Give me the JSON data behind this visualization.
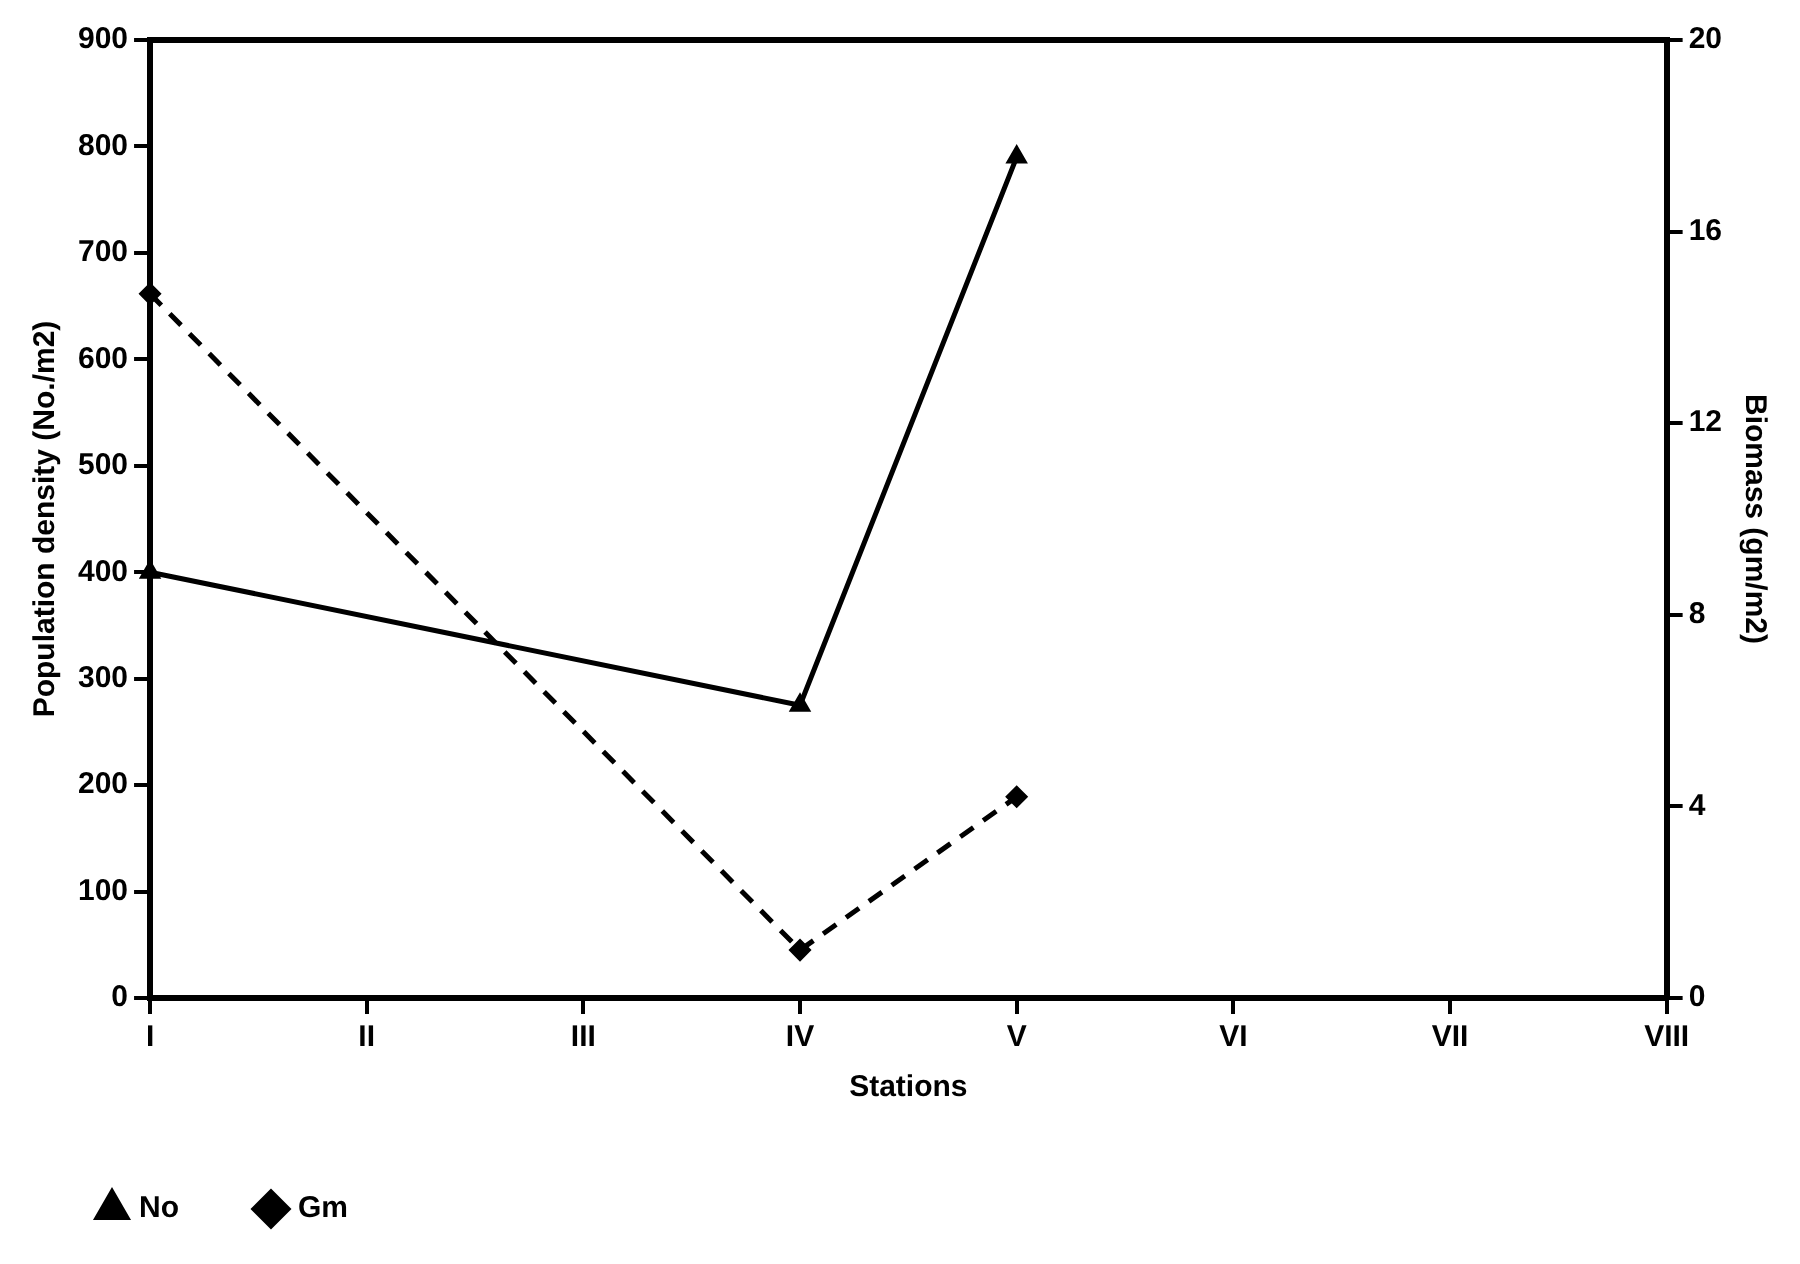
{
  "chart_data": {
    "type": "line",
    "xlabel": "Stations",
    "ylabel": "Population density (No./m2)",
    "y2label": "Biomass (gm/m2)",
    "categories": [
      "I",
      "II",
      "III",
      "IV",
      "V",
      "VI",
      "VII",
      "VIII"
    ],
    "series": [
      {
        "name": "No",
        "color": "#000000",
        "marker": "triangle",
        "line_style": "solid",
        "values": [
          400,
          null,
          null,
          275,
          790,
          null,
          null,
          null
        ]
      },
      {
        "name": "Gm",
        "color": "#000000",
        "marker": "diamond",
        "line_style": "dashed",
        "axis": "y2",
        "values": [
          14.7,
          null,
          null,
          1.0,
          4.2,
          null,
          null,
          null
        ]
      }
    ],
    "ylim": [
      0,
      900
    ],
    "yticks": [
      0,
      100,
      200,
      300,
      400,
      500,
      600,
      700,
      800,
      900
    ],
    "y2lim": [
      0,
      20
    ],
    "y2ticks": [
      0,
      4,
      8,
      12,
      16,
      20
    ],
    "grid": false,
    "legend": "bottom"
  }
}
